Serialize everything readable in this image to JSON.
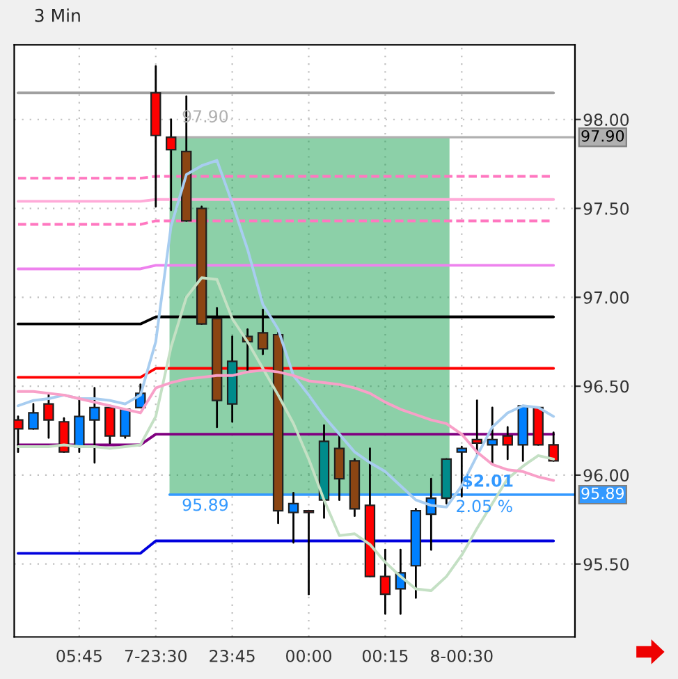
{
  "chart_data": {
    "type": "candlestick",
    "title": "3 Min",
    "categories": [
      null,
      null,
      null,
      null,
      "05:45",
      null,
      null,
      null,
      null,
      "7-23:30",
      null,
      null,
      null,
      null,
      "23:45",
      null,
      null,
      null,
      null,
      "00:00",
      null,
      null,
      null,
      null,
      "00:15",
      null,
      null,
      null,
      null,
      "8-00:30",
      null,
      null,
      null,
      null,
      null,
      null
    ],
    "ohlc": [
      [
        96.31,
        96.33,
        96.13,
        96.26
      ],
      [
        96.26,
        96.4,
        96.26,
        96.35
      ],
      [
        96.4,
        96.46,
        96.21,
        96.31
      ],
      [
        96.3,
        96.32,
        96.13,
        96.13
      ],
      [
        96.16,
        96.42,
        96.13,
        96.33
      ],
      [
        96.31,
        96.49,
        96.07,
        96.38
      ],
      [
        96.38,
        96.39,
        96.18,
        96.22
      ],
      [
        96.22,
        96.37,
        96.21,
        96.37
      ],
      [
        96.38,
        96.51,
        96.38,
        96.46
      ],
      [
        98.15,
        98.3,
        97.51,
        97.91
      ],
      [
        97.9,
        98.0,
        97.49,
        97.83
      ],
      [
        97.82,
        98.13,
        97.43,
        97.43
      ],
      [
        97.5,
        97.51,
        96.85,
        96.85
      ],
      [
        96.88,
        96.94,
        96.27,
        96.42
      ],
      [
        96.4,
        96.78,
        96.3,
        96.64
      ],
      [
        96.78,
        96.82,
        96.58,
        96.75
      ],
      [
        96.8,
        96.93,
        96.68,
        96.71
      ],
      [
        96.79,
        96.8,
        95.73,
        95.8
      ],
      [
        95.79,
        95.9,
        95.62,
        95.84
      ],
      [
        95.8,
        95.8,
        95.33,
        95.79
      ],
      [
        95.86,
        96.28,
        95.76,
        96.19
      ],
      [
        96.15,
        96.23,
        95.86,
        95.98
      ],
      [
        96.08,
        96.09,
        95.77,
        95.81
      ],
      [
        95.83,
        96.15,
        95.43,
        95.43
      ],
      [
        95.43,
        95.58,
        95.22,
        95.33
      ],
      [
        95.36,
        95.58,
        95.22,
        95.45
      ],
      [
        95.49,
        95.81,
        95.31,
        95.8
      ],
      [
        95.78,
        95.98,
        95.58,
        95.87
      ],
      [
        95.87,
        96.09,
        95.84,
        96.09
      ],
      [
        96.13,
        96.16,
        95.88,
        96.15
      ],
      [
        96.2,
        96.42,
        96.12,
        96.18
      ],
      [
        96.17,
        96.38,
        96.06,
        96.2
      ],
      [
        96.22,
        96.27,
        96.09,
        96.17
      ],
      [
        96.17,
        96.39,
        96.08,
        96.39
      ],
      [
        96.38,
        96.38,
        96.17,
        96.17
      ],
      [
        96.17,
        96.24,
        96.08,
        96.08
      ]
    ],
    "colors": [
      "#ff0000",
      "#0080ff",
      "#ff0000",
      "#ff0000",
      "#0080ff",
      "#0080ff",
      "#ff0000",
      "#0080ff",
      "#0080ff",
      "#ff0000",
      "#ff0000",
      "#8b4513",
      "#8b4513",
      "#8b4513",
      "#008b8b",
      "#8b4513",
      "#8b4513",
      "#8b4513",
      "#0080ff",
      "#ff0000",
      "#008b8b",
      "#8b4513",
      "#8b4513",
      "#ff0000",
      "#ff0000",
      "#0080ff",
      "#0080ff",
      "#0080ff",
      "#008b8b",
      "#0080ff",
      "#ff0000",
      "#0080ff",
      "#ff0000",
      "#0080ff",
      "#ff0000",
      "#ff0000"
    ],
    "series": [
      {
        "type": "line",
        "color": "#a0a0a0",
        "values": [
          98.15,
          98.15,
          98.15,
          98.15,
          98.15,
          98.15,
          98.15,
          98.15,
          98.15,
          98.15,
          98.15,
          98.15,
          98.15,
          98.15,
          98.15,
          98.15,
          98.15,
          98.15,
          98.15,
          98.15,
          98.15,
          98.15,
          98.15,
          98.15,
          98.15,
          98.15,
          98.15,
          98.15,
          98.15,
          98.15,
          98.15,
          98.15,
          98.15,
          98.15,
          98.15,
          98.15
        ]
      },
      {
        "type": "line",
        "color": "#ff77c0",
        "line_style": "dashed",
        "values": [
          97.67,
          97.67,
          97.67,
          97.67,
          97.67,
          97.67,
          97.67,
          97.67,
          97.67,
          97.68,
          97.68,
          97.68,
          97.68,
          97.68,
          97.68,
          97.68,
          97.68,
          97.68,
          97.68,
          97.68,
          97.68,
          97.68,
          97.68,
          97.68,
          97.68,
          97.68,
          97.68,
          97.68,
          97.68,
          97.68,
          97.68,
          97.68,
          97.68,
          97.68,
          97.68,
          97.68
        ]
      },
      {
        "type": "line",
        "color": "#ffaad8",
        "values": [
          97.54,
          97.54,
          97.54,
          97.54,
          97.54,
          97.54,
          97.54,
          97.54,
          97.54,
          97.55,
          97.55,
          97.55,
          97.55,
          97.55,
          97.55,
          97.55,
          97.55,
          97.55,
          97.55,
          97.55,
          97.55,
          97.55,
          97.55,
          97.55,
          97.55,
          97.55,
          97.55,
          97.55,
          97.55,
          97.55,
          97.55,
          97.55,
          97.55,
          97.55,
          97.55,
          97.55
        ]
      },
      {
        "type": "line",
        "color": "#ff77c0",
        "line_style": "dashed",
        "values": [
          97.41,
          97.41,
          97.41,
          97.41,
          97.41,
          97.41,
          97.41,
          97.41,
          97.41,
          97.43,
          97.43,
          97.43,
          97.43,
          97.43,
          97.43,
          97.43,
          97.43,
          97.43,
          97.43,
          97.43,
          97.43,
          97.43,
          97.43,
          97.43,
          97.43,
          97.43,
          97.43,
          97.43,
          97.43,
          97.43,
          97.43,
          97.43,
          97.43,
          97.43,
          97.43,
          97.43
        ]
      },
      {
        "type": "line",
        "color": "#ee82ee",
        "values": [
          97.16,
          97.16,
          97.16,
          97.16,
          97.16,
          97.16,
          97.16,
          97.16,
          97.16,
          97.18,
          97.18,
          97.18,
          97.18,
          97.18,
          97.18,
          97.18,
          97.18,
          97.18,
          97.18,
          97.18,
          97.18,
          97.18,
          97.18,
          97.18,
          97.18,
          97.18,
          97.18,
          97.18,
          97.18,
          97.18,
          97.18,
          97.18,
          97.18,
          97.18,
          97.18,
          97.18
        ]
      },
      {
        "type": "line",
        "color": "#000000",
        "values": [
          96.85,
          96.85,
          96.85,
          96.85,
          96.85,
          96.85,
          96.85,
          96.85,
          96.85,
          96.89,
          96.89,
          96.89,
          96.89,
          96.89,
          96.89,
          96.89,
          96.89,
          96.89,
          96.89,
          96.89,
          96.89,
          96.89,
          96.89,
          96.89,
          96.89,
          96.89,
          96.89,
          96.89,
          96.89,
          96.89,
          96.89,
          96.89,
          96.89,
          96.89,
          96.89,
          96.89
        ]
      },
      {
        "type": "line",
        "color": "#ff0000",
        "values": [
          96.55,
          96.55,
          96.55,
          96.55,
          96.55,
          96.55,
          96.55,
          96.55,
          96.55,
          96.6,
          96.6,
          96.6,
          96.6,
          96.6,
          96.6,
          96.6,
          96.6,
          96.6,
          96.6,
          96.6,
          96.6,
          96.6,
          96.6,
          96.6,
          96.6,
          96.6,
          96.6,
          96.6,
          96.6,
          96.6,
          96.6,
          96.6,
          96.6,
          96.6,
          96.6,
          96.6
        ]
      },
      {
        "type": "line",
        "color": "#800080",
        "values": [
          96.17,
          96.17,
          96.17,
          96.17,
          96.17,
          96.17,
          96.17,
          96.17,
          96.17,
          96.23,
          96.23,
          96.23,
          96.23,
          96.23,
          96.23,
          96.23,
          96.23,
          96.23,
          96.23,
          96.23,
          96.23,
          96.23,
          96.23,
          96.23,
          96.23,
          96.23,
          96.23,
          96.23,
          96.23,
          96.23,
          96.23,
          96.23,
          96.23,
          96.23,
          96.23,
          96.23
        ]
      },
      {
        "type": "line",
        "color": "#0000dd",
        "values": [
          95.56,
          95.56,
          95.56,
          95.56,
          95.56,
          95.56,
          95.56,
          95.56,
          95.56,
          95.63,
          95.63,
          95.63,
          95.63,
          95.63,
          95.63,
          95.63,
          95.63,
          95.63,
          95.63,
          95.63,
          95.63,
          95.63,
          95.63,
          95.63,
          95.63,
          95.63,
          95.63,
          95.63,
          95.63,
          95.63,
          95.63,
          95.63,
          95.63,
          95.63,
          95.63,
          95.63
        ]
      },
      {
        "type": "line",
        "color": "#a8cdf0",
        "values": [
          96.39,
          96.42,
          96.43,
          96.45,
          96.43,
          96.43,
          96.42,
          96.4,
          96.45,
          96.75,
          97.4,
          97.69,
          97.74,
          97.77,
          97.53,
          97.27,
          96.96,
          96.82,
          96.56,
          96.45,
          96.33,
          96.23,
          96.13,
          96.07,
          96.02,
          95.94,
          95.86,
          95.83,
          95.82,
          95.94,
          96.11,
          96.27,
          96.35,
          96.39,
          96.38,
          96.33
        ]
      },
      {
        "type": "line",
        "color": "#c4e0c4",
        "values": [
          96.16,
          96.16,
          96.16,
          96.17,
          96.16,
          96.16,
          96.15,
          96.16,
          96.17,
          96.33,
          96.72,
          97.0,
          97.11,
          97.1,
          96.88,
          96.75,
          96.6,
          96.45,
          96.29,
          96.09,
          95.86,
          95.66,
          95.67,
          95.61,
          95.51,
          95.43,
          95.36,
          95.35,
          95.43,
          95.55,
          95.7,
          95.84,
          95.98,
          96.05,
          96.11,
          96.09
        ]
      },
      {
        "type": "line",
        "color": "#f8a0c8",
        "values": [
          96.47,
          96.47,
          96.46,
          96.45,
          96.43,
          96.41,
          96.39,
          96.37,
          96.35,
          96.49,
          96.52,
          96.54,
          96.55,
          96.56,
          96.56,
          96.58,
          96.59,
          96.58,
          96.56,
          96.53,
          96.52,
          96.51,
          96.49,
          96.46,
          96.41,
          96.37,
          96.34,
          96.31,
          96.29,
          96.23,
          96.13,
          96.06,
          96.03,
          96.02,
          95.99,
          95.97
        ]
      }
    ],
    "bands": [
      {
        "axis": "y",
        "from": 95.89,
        "to": 97.9,
        "color": "#049841"
      }
    ],
    "ref_lines": [
      {
        "axis": "y",
        "value": 97.9,
        "label": "97.90",
        "color": "#b0b0b0"
      },
      {
        "axis": "y",
        "value": 95.89,
        "label": "95.89",
        "color": "#3399ff"
      }
    ],
    "annotations": [
      {
        "text": "97.90",
        "y": 97.9
      },
      {
        "text": "95.89",
        "y": 95.89
      },
      "$2.01",
      "2.05 %"
    ],
    "ylim": [
      95.09,
      98.42
    ],
    "yticks": [
      {
        "value": 95.5,
        "label": "95.50"
      },
      {
        "value": 96.0,
        "label": "96.00"
      },
      {
        "value": 96.5,
        "label": "96.50"
      },
      {
        "value": 97.0,
        "label": "97.00"
      },
      {
        "value": 97.5,
        "label": "97.50"
      },
      {
        "value": 98.0,
        "label": "98.00"
      }
    ],
    "grid": true,
    "legend": false
  }
}
